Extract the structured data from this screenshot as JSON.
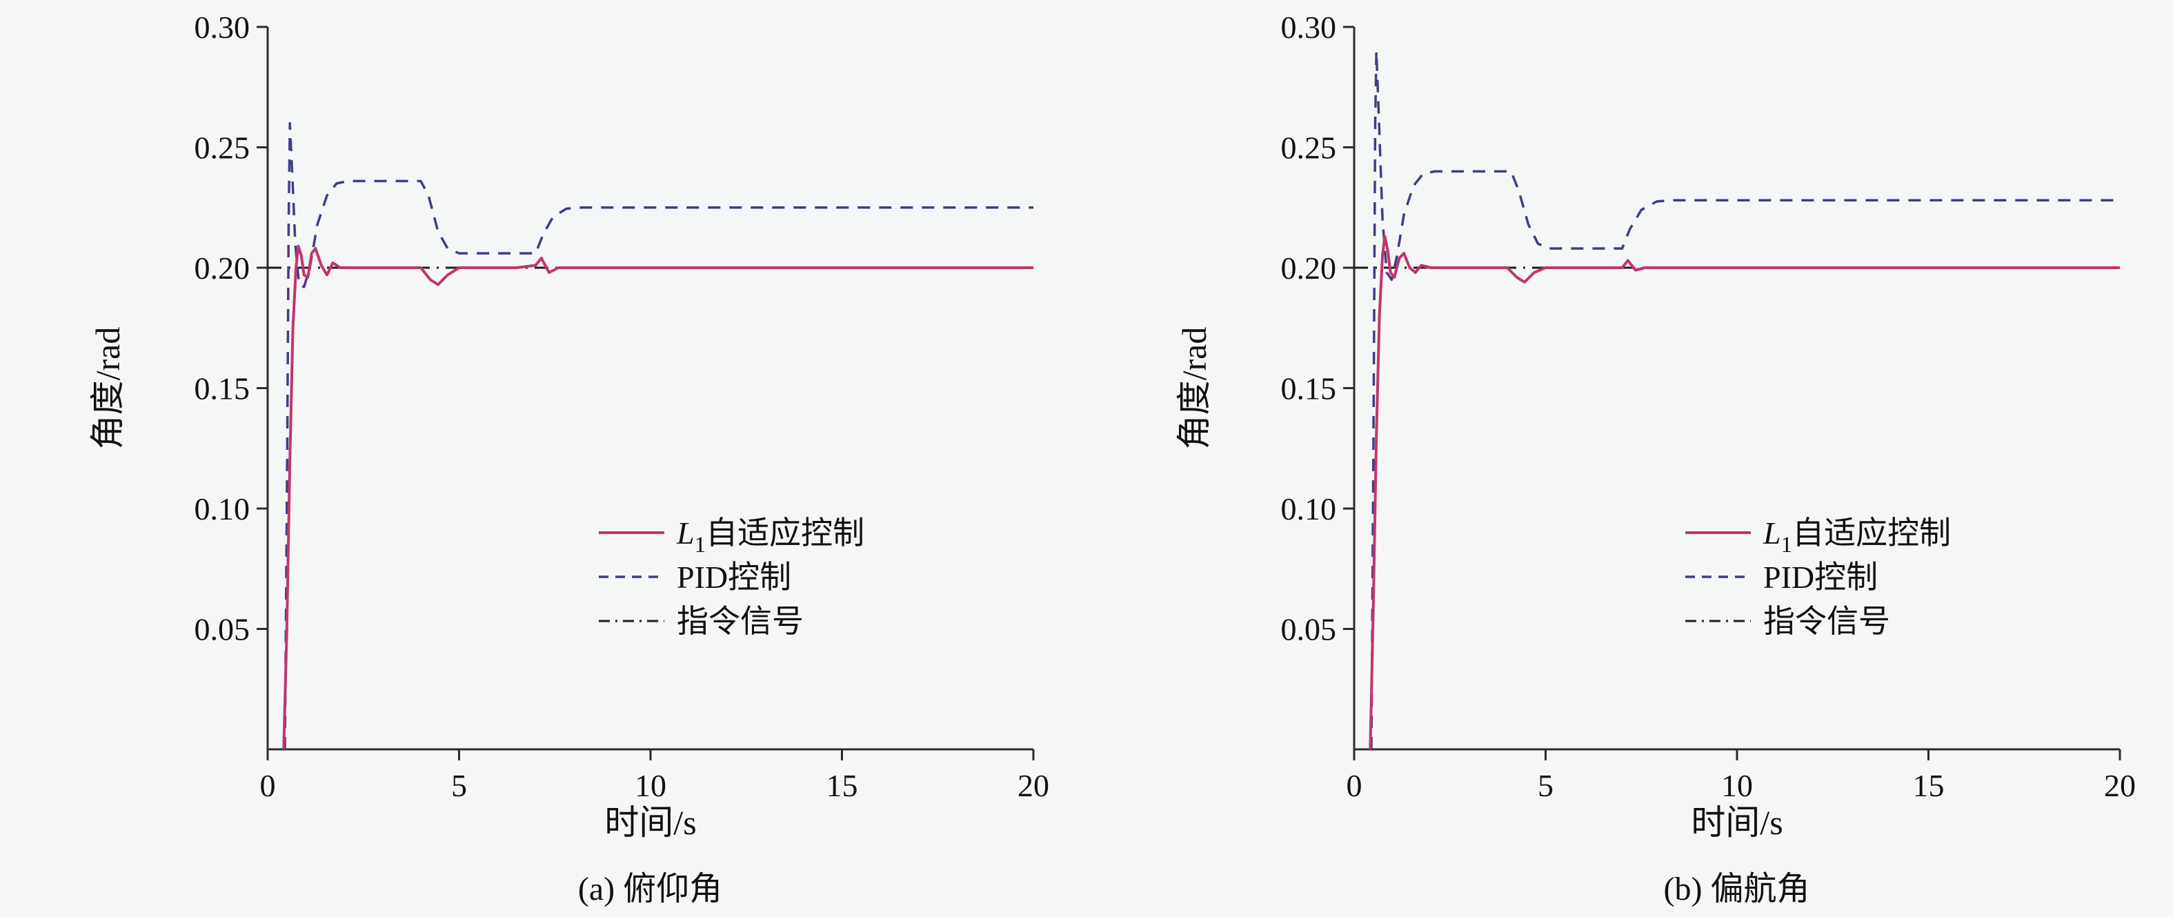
{
  "background": "#f5f6f6",
  "chart_data": [
    {
      "type": "line",
      "caption": "(a) 俯仰角",
      "xlabel": "时间/s",
      "ylabel": "角度/rad",
      "xlim": [
        0,
        20
      ],
      "ylim": [
        0,
        0.3
      ],
      "xticks": [
        0,
        5,
        10,
        15,
        20
      ],
      "xtick_labels": [
        "0",
        "5",
        "10",
        "15",
        "20"
      ],
      "yticks": [
        0.05,
        0.1,
        0.15,
        0.2,
        0.25,
        0.3
      ],
      "ytick_labels": [
        "0.05",
        "0.10",
        "0.15",
        "0.20",
        "0.25",
        "0.30"
      ],
      "grid": false,
      "legend_position": "inside lower right",
      "legend_order": [
        "l1-adaptive",
        "pid-control",
        "command-signal"
      ],
      "series": [
        {
          "name": "command-signal",
          "legend": {
            "text": "指令信号"
          },
          "color": "#1c1c1c",
          "dash": "dashdot",
          "width": 3,
          "points": [
            [
              0,
              0.2
            ],
            [
              20,
              0.2
            ]
          ]
        },
        {
          "name": "pid-control",
          "legend": {
            "text": "PID控制"
          },
          "color": "#3e4080",
          "dash": "dashed",
          "width": 3.5,
          "points": [
            [
              0.45,
              0
            ],
            [
              0.5,
              0.1
            ],
            [
              0.55,
              0.22
            ],
            [
              0.58,
              0.26
            ],
            [
              0.64,
              0.24
            ],
            [
              0.72,
              0.21
            ],
            [
              0.82,
              0.193
            ],
            [
              0.95,
              0.192
            ],
            [
              1.1,
              0.2
            ],
            [
              1.3,
              0.218
            ],
            [
              1.55,
              0.23
            ],
            [
              1.8,
              0.235
            ],
            [
              2.1,
              0.236
            ],
            [
              4.0,
              0.236
            ],
            [
              4.2,
              0.23
            ],
            [
              4.45,
              0.215
            ],
            [
              4.7,
              0.208
            ],
            [
              5.0,
              0.206
            ],
            [
              5.5,
              0.206
            ],
            [
              7.0,
              0.206
            ],
            [
              7.2,
              0.214
            ],
            [
              7.45,
              0.221
            ],
            [
              7.8,
              0.2245
            ],
            [
              8.2,
              0.225
            ],
            [
              20,
              0.225
            ]
          ]
        },
        {
          "name": "l1-adaptive",
          "legend": {
            "italic": "L",
            "sub": "1",
            "text": "自适应控制"
          },
          "color": "#c1356f",
          "dash": "solid",
          "width": 4,
          "points": [
            [
              0.42,
              0
            ],
            [
              0.5,
              0.05
            ],
            [
              0.58,
              0.12
            ],
            [
              0.66,
              0.175
            ],
            [
              0.74,
              0.2
            ],
            [
              0.8,
              0.209
            ],
            [
              0.88,
              0.205
            ],
            [
              0.95,
              0.197
            ],
            [
              1.05,
              0.196
            ],
            [
              1.15,
              0.206
            ],
            [
              1.25,
              0.208
            ],
            [
              1.4,
              0.201
            ],
            [
              1.55,
              0.197
            ],
            [
              1.7,
              0.202
            ],
            [
              1.9,
              0.2
            ],
            [
              2.5,
              0.2
            ],
            [
              4.0,
              0.2
            ],
            [
              4.25,
              0.195
            ],
            [
              4.45,
              0.193
            ],
            [
              4.7,
              0.197
            ],
            [
              5.0,
              0.2
            ],
            [
              6.5,
              0.2
            ],
            [
              7.0,
              0.201
            ],
            [
              7.15,
              0.204
            ],
            [
              7.35,
              0.198
            ],
            [
              7.6,
              0.2
            ],
            [
              20,
              0.2
            ]
          ]
        }
      ]
    },
    {
      "type": "line",
      "caption": "(b) 偏航角",
      "xlabel": "时间/s",
      "ylabel": "角度/rad",
      "xlim": [
        0,
        20
      ],
      "ylim": [
        0,
        0.3
      ],
      "xticks": [
        0,
        5,
        10,
        15,
        20
      ],
      "xtick_labels": [
        "0",
        "5",
        "10",
        "15",
        "20"
      ],
      "yticks": [
        0.05,
        0.1,
        0.15,
        0.2,
        0.25,
        0.3
      ],
      "ytick_labels": [
        "0.05",
        "0.10",
        "0.15",
        "0.20",
        "0.25",
        "0.30"
      ],
      "grid": false,
      "legend_position": "inside lower right",
      "legend_order": [
        "l1-adaptive",
        "pid-control",
        "command-signal"
      ],
      "series": [
        {
          "name": "command-signal",
          "legend": {
            "text": "指令信号"
          },
          "color": "#1c1c1c",
          "dash": "dashdot",
          "width": 3,
          "points": [
            [
              0,
              0.2
            ],
            [
              20,
              0.2
            ]
          ]
        },
        {
          "name": "pid-control",
          "legend": {
            "text": "PID控制"
          },
          "color": "#3e4080",
          "dash": "dashed",
          "width": 3.5,
          "points": [
            [
              0.45,
              0
            ],
            [
              0.5,
              0.12
            ],
            [
              0.55,
              0.26
            ],
            [
              0.58,
              0.29
            ],
            [
              0.65,
              0.26
            ],
            [
              0.74,
              0.22
            ],
            [
              0.85,
              0.198
            ],
            [
              0.98,
              0.195
            ],
            [
              1.12,
              0.205
            ],
            [
              1.3,
              0.222
            ],
            [
              1.55,
              0.234
            ],
            [
              1.8,
              0.239
            ],
            [
              2.1,
              0.24
            ],
            [
              4.1,
              0.24
            ],
            [
              4.3,
              0.232
            ],
            [
              4.55,
              0.218
            ],
            [
              4.8,
              0.21
            ],
            [
              5.1,
              0.208
            ],
            [
              7.0,
              0.208
            ],
            [
              7.2,
              0.216
            ],
            [
              7.5,
              0.224
            ],
            [
              7.9,
              0.2275
            ],
            [
              8.3,
              0.228
            ],
            [
              20,
              0.228
            ]
          ]
        },
        {
          "name": "l1-adaptive",
          "legend": {
            "italic": "L",
            "sub": "1",
            "text": "自适应控制"
          },
          "color": "#c1356f",
          "dash": "solid",
          "width": 4,
          "points": [
            [
              0.42,
              0
            ],
            [
              0.5,
              0.06
            ],
            [
              0.58,
              0.13
            ],
            [
              0.66,
              0.18
            ],
            [
              0.74,
              0.205
            ],
            [
              0.8,
              0.213
            ],
            [
              0.88,
              0.207
            ],
            [
              0.95,
              0.198
            ],
            [
              1.05,
              0.196
            ],
            [
              1.18,
              0.204
            ],
            [
              1.3,
              0.206
            ],
            [
              1.45,
              0.2
            ],
            [
              1.6,
              0.198
            ],
            [
              1.75,
              0.201
            ],
            [
              2.0,
              0.2
            ],
            [
              4.0,
              0.2
            ],
            [
              4.25,
              0.196
            ],
            [
              4.45,
              0.194
            ],
            [
              4.7,
              0.198
            ],
            [
              5.0,
              0.2
            ],
            [
              7.0,
              0.2
            ],
            [
              7.15,
              0.203
            ],
            [
              7.35,
              0.199
            ],
            [
              7.6,
              0.2
            ],
            [
              20,
              0.2
            ]
          ]
        }
      ]
    }
  ]
}
